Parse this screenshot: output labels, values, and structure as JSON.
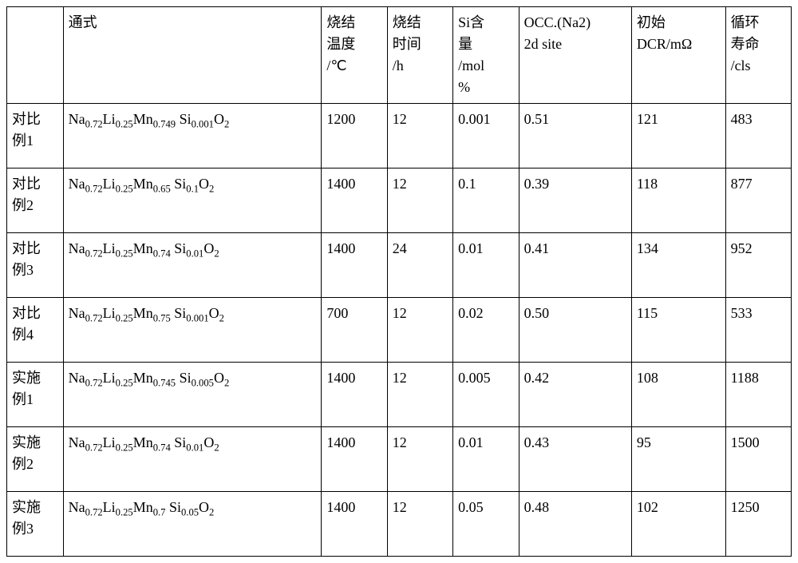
{
  "table": {
    "columns": [
      "",
      "通式",
      "烧结温度/℃",
      "烧结时间/h",
      "Si含量/mol%",
      "OCC.(Na2) 2d site",
      "初始DCR/mΩ",
      "循环寿命/cls"
    ],
    "header_lines": [
      [
        ""
      ],
      [
        "通式"
      ],
      [
        "烧结",
        "温度",
        "/℃"
      ],
      [
        "烧结",
        "时间",
        "/h"
      ],
      [
        "Si含",
        "量",
        "/mol",
        "%"
      ],
      [
        "OCC.(Na2)",
        "2d site"
      ],
      [
        "初始",
        "DCR/mΩ"
      ],
      [
        "循环",
        "寿命",
        "/cls"
      ]
    ],
    "rows": [
      {
        "label": "对比例1",
        "label_lines": [
          "对比",
          "例1"
        ],
        "formula_parts": [
          {
            "t": "Na",
            "s": "0.72"
          },
          {
            "t": "Li",
            "s": "0.25"
          },
          {
            "t": "Mn",
            "s": "0.749"
          },
          {
            "sp": true
          },
          {
            "t": "Si",
            "s": "0.001"
          },
          {
            "t": "O",
            "s": "2"
          }
        ],
        "sinter_temp": "1200",
        "sinter_time": "12",
        "si_content": "0.001",
        "occ": "0.51",
        "dcr": "121",
        "cycle": "483"
      },
      {
        "label": "对比例2",
        "label_lines": [
          "对比",
          "例2"
        ],
        "formula_parts": [
          {
            "t": "Na",
            "s": "0.72"
          },
          {
            "t": "Li",
            "s": "0.25"
          },
          {
            "t": "Mn",
            "s": "0.65"
          },
          {
            "sp": true
          },
          {
            "t": "Si",
            "s": "0.1"
          },
          {
            "t": "O",
            "s": "2"
          }
        ],
        "sinter_temp": "1400",
        "sinter_time": "12",
        "si_content": "0.1",
        "occ": "0.39",
        "dcr": "118",
        "cycle": "877"
      },
      {
        "label": "对比例3",
        "label_lines": [
          "对比",
          "例3"
        ],
        "formula_parts": [
          {
            "t": "Na",
            "s": "0.72"
          },
          {
            "t": "Li",
            "s": "0.25"
          },
          {
            "t": "Mn",
            "s": "0.74"
          },
          {
            "sp": true
          },
          {
            "t": "Si",
            "s": "0.01"
          },
          {
            "t": "O",
            "s": "2"
          }
        ],
        "sinter_temp": "1400",
        "sinter_time": "24",
        "si_content": "0.01",
        "occ": "0.41",
        "dcr": "134",
        "cycle": "952"
      },
      {
        "label": "对比例4",
        "label_lines": [
          "对比",
          "例4"
        ],
        "formula_parts": [
          {
            "t": "Na",
            "s": "0.72"
          },
          {
            "t": "Li",
            "s": "0.25"
          },
          {
            "t": "Mn",
            "s": "0.75"
          },
          {
            "sp": true
          },
          {
            "t": "Si",
            "s": "0.001"
          },
          {
            "t": "O",
            "s": "2"
          }
        ],
        "sinter_temp": "700",
        "sinter_time": "12",
        "si_content": "0.02",
        "occ": "0.50",
        "dcr": "115",
        "cycle": "533"
      },
      {
        "label": "实施例1",
        "label_lines": [
          "实施",
          "例1"
        ],
        "formula_parts": [
          {
            "t": "Na",
            "s": "0.72"
          },
          {
            "t": "Li",
            "s": "0.25"
          },
          {
            "t": "Mn",
            "s": "0.745"
          },
          {
            "sp": true
          },
          {
            "t": "Si",
            "s": "0.005"
          },
          {
            "t": "O",
            "s": "2"
          }
        ],
        "sinter_temp": "1400",
        "sinter_time": "12",
        "si_content": "0.005",
        "occ": "0.42",
        "dcr": "108",
        "cycle": "1188"
      },
      {
        "label": "实施例2",
        "label_lines": [
          "实施",
          "例2"
        ],
        "formula_parts": [
          {
            "t": "Na",
            "s": "0.72"
          },
          {
            "t": "Li",
            "s": "0.25"
          },
          {
            "t": "Mn",
            "s": "0.74"
          },
          {
            "sp": true
          },
          {
            "t": "Si",
            "s": "0.01"
          },
          {
            "t": "O",
            "s": "2"
          }
        ],
        "sinter_temp": "1400",
        "sinter_time": "12",
        "si_content": "0.01",
        "occ": "0.43",
        "dcr": "95",
        "cycle": "1500"
      },
      {
        "label": "实施例3",
        "label_lines": [
          "实施",
          "例3"
        ],
        "formula_parts": [
          {
            "t": "Na",
            "s": "0.72"
          },
          {
            "t": "Li",
            "s": "0.25"
          },
          {
            "t": "Mn",
            "s": "0.7"
          },
          {
            "sp": true
          },
          {
            "t": "Si",
            "s": "0.05"
          },
          {
            "t": "O",
            "s": "2"
          }
        ],
        "sinter_temp": "1400",
        "sinter_time": "12",
        "si_content": "0.05",
        "occ": "0.48",
        "dcr": "102",
        "cycle": "1250"
      }
    ]
  }
}
